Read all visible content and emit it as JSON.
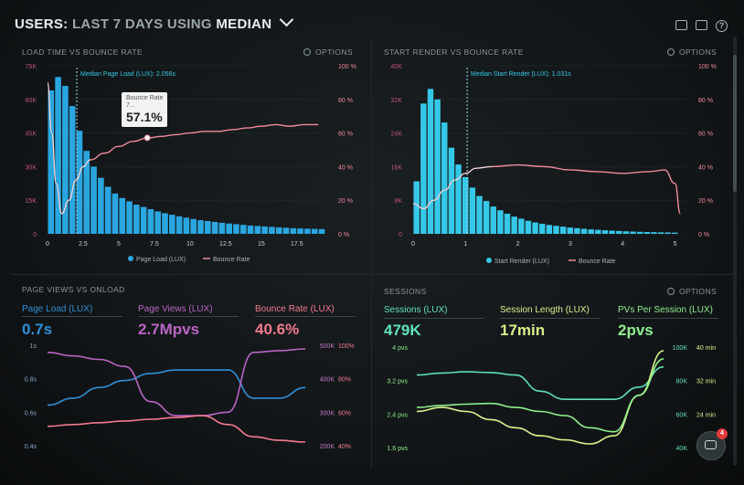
{
  "header": {
    "prefix": "USERS:",
    "range": "LAST 7 DAYS",
    "using": "USING",
    "stat": "MEDIAN"
  },
  "top_icons": [
    "monitor-icon",
    "image-icon",
    "help-icon"
  ],
  "help_glyph": "?",
  "options_label": "OPTIONS",
  "panel1": {
    "title": "LOAD TIME VS BOUNCE RATE",
    "median_label": "Median Page Load (LUX): 2.056s",
    "tooltip_label": "Bounce Rate",
    "tooltip_sub": "7...",
    "tooltip_value": "57.1%",
    "legend": [
      "Page Load (LUX)",
      "Bounce Rate"
    ]
  },
  "panel2": {
    "title": "START RENDER VS BOUNCE RATE",
    "median_label": "Median Start Render (LUX): 1.031s",
    "legend": [
      "Start Render (LUX)",
      "Bounce Rate"
    ]
  },
  "panel3": {
    "title": "PAGE VIEWS VS ONLOAD",
    "metrics": [
      {
        "label": "Page Load (LUX)",
        "value": "0.7s",
        "color": "#2f8fd6"
      },
      {
        "label": "Page Views (LUX)",
        "value": "2.7Mpvs",
        "color": "#b864c4"
      },
      {
        "label": "Bounce Rate (LUX)",
        "value": "40.6%",
        "color": "#f27a8e"
      }
    ]
  },
  "panel4": {
    "title": "SESSIONS",
    "metrics": [
      {
        "label": "Sessions (LUX)",
        "value": "479K",
        "color": "#5fe2b8"
      },
      {
        "label": "Session Length (LUX)",
        "value": "17min",
        "color": "#d7f28a"
      },
      {
        "label": "PVs Per Session (LUX)",
        "value": "2pvs",
        "color": "#8ef08e"
      }
    ]
  },
  "chat_badge": "4",
  "chart_data": [
    {
      "type": "bar",
      "title": "LOAD TIME VS BOUNCE RATE",
      "x_ticks": [
        "0",
        "2.5",
        "5",
        "7.5",
        "10",
        "12.5",
        "15",
        "17.5"
      ],
      "xlim": [
        0,
        19.5
      ],
      "y_left_ticks": [
        "0",
        "15K",
        "30K",
        "45K",
        "60K",
        "75K"
      ],
      "ylim_left": [
        0,
        75000
      ],
      "y_right_ticks": [
        "0 %",
        "20 %",
        "40 %",
        "60 %",
        "80 %",
        "100 %"
      ],
      "ylim_right": [
        0,
        100
      ],
      "median_x": 2.056,
      "bar_color": "#2aa6e0",
      "line_color": "#f08a9b",
      "series": [
        {
          "name": "Page Load (LUX)",
          "kind": "bar",
          "bin_width": 0.5,
          "values": [
            64000,
            70000,
            66000,
            57000,
            46000,
            37000,
            30000,
            25000,
            21000,
            18000,
            16000,
            14500,
            13000,
            12000,
            11000,
            10000,
            9200,
            8500,
            7800,
            7200,
            6600,
            6100,
            5700,
            5300,
            4900,
            4600,
            4300,
            4000,
            3700,
            3500,
            3300,
            3100,
            2900,
            2700,
            2500,
            2400,
            2300,
            2200,
            2100
          ]
        },
        {
          "name": "Bounce Rate",
          "kind": "line",
          "axis": "right",
          "x": [
            0,
            0.3,
            0.6,
            1.0,
            1.5,
            2.0,
            2.5,
            3.0,
            4.0,
            5.0,
            6.0,
            7.0,
            8.0,
            9.0,
            10.0,
            11.0,
            12.0,
            13.0,
            14.0,
            15.0,
            16.0,
            17.0,
            18.0,
            19.0
          ],
          "y": [
            90,
            60,
            30,
            12,
            20,
            32,
            40,
            44,
            48,
            52,
            55,
            57,
            58,
            59,
            60,
            61,
            61,
            62,
            63,
            64,
            65,
            64,
            65,
            65
          ]
        }
      ],
      "tooltip": {
        "x": 7,
        "value": 57.1
      }
    },
    {
      "type": "bar",
      "title": "START RENDER VS BOUNCE RATE",
      "x_ticks": [
        "0",
        "1",
        "2",
        "3",
        "4",
        "5"
      ],
      "xlim": [
        0,
        5.2
      ],
      "y_left_ticks": [
        "0",
        "8K",
        "16K",
        "24K",
        "32K",
        "40K"
      ],
      "ylim_left": [
        0,
        40000
      ],
      "y_right_ticks": [
        "0 %",
        "20 %",
        "40 %",
        "60 %",
        "80 %",
        "100 %"
      ],
      "ylim_right": [
        0,
        100
      ],
      "median_x": 1.031,
      "bar_color": "#36c8e8",
      "line_color": "#f08a9b",
      "series": [
        {
          "name": "Start Render (LUX)",
          "kind": "bar",
          "bin_width": 0.1333,
          "values": [
            12500,
            31000,
            34500,
            32000,
            26500,
            20500,
            16500,
            13500,
            11000,
            9000,
            7800,
            6500,
            5600,
            4800,
            4100,
            3600,
            3100,
            2700,
            2400,
            2100,
            1900,
            1700,
            1500,
            1350,
            1200,
            1050,
            950,
            850,
            760,
            680,
            600,
            540,
            480,
            430,
            390,
            350,
            320,
            290
          ]
        },
        {
          "name": "Bounce Rate",
          "kind": "line",
          "axis": "right",
          "x": [
            0,
            0.2,
            0.4,
            0.6,
            0.8,
            1.0,
            1.2,
            1.5,
            2.0,
            2.5,
            3.0,
            3.5,
            4.0,
            4.5,
            4.8,
            5.0,
            5.1
          ],
          "y": [
            18,
            15,
            20,
            26,
            32,
            36,
            39,
            40,
            41,
            40,
            38,
            37,
            36,
            37,
            38,
            30,
            12
          ]
        }
      ]
    },
    {
      "type": "line",
      "title": "PAGE VIEWS VS ONLOAD",
      "y_left_ticks": [
        "1s",
        "0.8s",
        "0.6s",
        "0.4s"
      ],
      "ylim_left": [
        0.35,
        1.0
      ],
      "y_right_ticks": [
        "500K",
        "400K",
        "300K",
        "200K"
      ],
      "y_right2_ticks": [
        "100%",
        "80%",
        "60%",
        "40%"
      ],
      "series": [
        {
          "name": "Page Load (LUX)",
          "color": "#2f8fd6",
          "x": [
            0,
            1,
            2,
            3,
            4,
            5,
            6,
            7,
            8,
            9,
            10
          ],
          "y": [
            0.58,
            0.62,
            0.68,
            0.72,
            0.76,
            0.78,
            0.78,
            0.78,
            0.62,
            0.62,
            0.68
          ]
        },
        {
          "name": "Page Views (LUX)",
          "color": "#b864c4",
          "x": [
            0,
            1,
            2,
            3,
            4,
            5,
            6,
            7,
            8,
            9,
            10
          ],
          "y": [
            0.88,
            0.86,
            0.84,
            0.8,
            0.6,
            0.52,
            0.52,
            0.54,
            0.88,
            0.89,
            0.9
          ]
        },
        {
          "name": "Bounce Rate (LUX)",
          "color": "#f27a8e",
          "x": [
            0,
            1,
            2,
            3,
            4,
            5,
            6,
            7,
            8,
            9,
            10
          ],
          "y": [
            0.46,
            0.47,
            0.48,
            0.49,
            0.5,
            0.51,
            0.52,
            0.47,
            0.4,
            0.38,
            0.37
          ]
        }
      ]
    },
    {
      "type": "line",
      "title": "SESSIONS",
      "y_left_ticks": [
        "4 pvs",
        "3.2 pvs",
        "2.4 pvs",
        "1.6 pvs"
      ],
      "y_right_ticks": [
        "100K",
        "80K",
        "60K",
        "40K"
      ],
      "y_right2_ticks": [
        "40 min",
        "32 min",
        "24 min"
      ],
      "series": [
        {
          "name": "Sessions (LUX)",
          "color": "#5fe2b8",
          "x": [
            0,
            1,
            2,
            3,
            4,
            5,
            6,
            7,
            8,
            9,
            10
          ],
          "y": [
            3.1,
            3.15,
            3.18,
            3.16,
            3.1,
            2.7,
            2.5,
            2.5,
            2.5,
            2.8,
            3.3
          ]
        },
        {
          "name": "Session Length (LUX)",
          "color": "#d7f28a",
          "x": [
            0,
            1,
            2,
            3,
            4,
            5,
            6,
            7,
            8,
            9,
            10
          ],
          "y": [
            2.2,
            2.3,
            2.2,
            2.0,
            1.8,
            1.6,
            1.5,
            1.4,
            1.6,
            2.6,
            3.7
          ]
        },
        {
          "name": "PVs Per Session (LUX)",
          "color": "#8ef08e",
          "x": [
            0,
            1,
            2,
            3,
            4,
            5,
            6,
            7,
            8,
            9,
            10
          ],
          "y": [
            2.3,
            2.35,
            2.38,
            2.4,
            2.3,
            2.2,
            2.1,
            1.8,
            1.7,
            2.6,
            3.5
          ]
        }
      ]
    }
  ]
}
